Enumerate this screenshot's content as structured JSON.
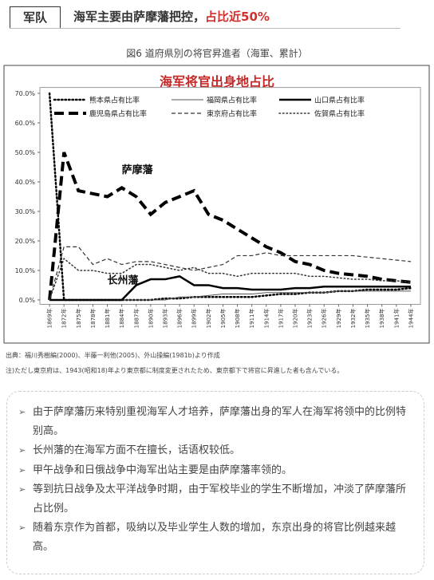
{
  "header": {
    "section": "军队",
    "title": "海军主要由萨摩藩把控，",
    "highlight": "占比近50%"
  },
  "figure_caption": "図6 道府県別の将官昇進者（海軍、累計）",
  "chart_data": {
    "type": "line",
    "title": "海军将官出身地占比",
    "x": [
      1869,
      1872,
      1875,
      1878,
      1881,
      1884,
      1887,
      1890,
      1893,
      1896,
      1899,
      1902,
      1905,
      1908,
      1911,
      1914,
      1917,
      1920,
      1923,
      1926,
      1929,
      1932,
      1935,
      1938,
      1941,
      1944
    ],
    "xlim": [
      1867,
      1946
    ],
    "xticks": [
      {
        "value": 1869,
        "label": "1869年"
      },
      {
        "value": 1872,
        "label": "1872年"
      },
      {
        "value": 1875,
        "label": "1875年"
      },
      {
        "value": 1878,
        "label": "1878年"
      },
      {
        "value": 1881,
        "label": "1881年"
      },
      {
        "value": 1884,
        "label": "1884年"
      },
      {
        "value": 1887,
        "label": "1887年"
      },
      {
        "value": 1890,
        "label": "1890年"
      },
      {
        "value": 1893,
        "label": "1893年"
      },
      {
        "value": 1896,
        "label": "1896年"
      },
      {
        "value": 1899,
        "label": "1899年"
      },
      {
        "value": 1902,
        "label": "1902年"
      },
      {
        "value": 1905,
        "label": "1905年"
      },
      {
        "value": 1908,
        "label": "1908年"
      },
      {
        "value": 1911,
        "label": "1911年"
      },
      {
        "value": 1914,
        "label": "1914年"
      },
      {
        "value": 1917,
        "label": "1917年"
      },
      {
        "value": 1920,
        "label": "1920年"
      },
      {
        "value": 1923,
        "label": "1923年"
      },
      {
        "value": 1926,
        "label": "1926年"
      },
      {
        "value": 1929,
        "label": "1929年"
      },
      {
        "value": 1932,
        "label": "1932年"
      },
      {
        "value": 1935,
        "label": "1935年"
      },
      {
        "value": 1938,
        "label": "1938年"
      },
      {
        "value": 1941,
        "label": "1941年"
      },
      {
        "value": 1944,
        "label": "1944年"
      }
    ],
    "ylim": [
      -1.5,
      72
    ],
    "yticks": [
      {
        "value": 0,
        "label": "0.0%"
      },
      {
        "value": 10,
        "label": "10.0%"
      },
      {
        "value": 20,
        "label": "20.0%"
      },
      {
        "value": 30,
        "label": "30.0%"
      },
      {
        "value": 40,
        "label": "40.0%"
      },
      {
        "value": 50,
        "label": "50.0%"
      },
      {
        "value": 60,
        "label": "60.0%"
      },
      {
        "value": 70,
        "label": "70.0%"
      }
    ],
    "series": [
      {
        "name": "熊本県占有比率",
        "color": "#000000",
        "dash": "dot",
        "width": 2.5,
        "values": [
          70,
          0,
          0,
          0,
          0,
          0,
          0,
          0,
          0.5,
          0.5,
          1,
          1,
          1,
          1,
          1,
          1.5,
          2,
          2,
          2.5,
          2.5,
          3,
          3,
          3.5,
          3.5,
          3.5,
          4
        ]
      },
      {
        "name": "福岡県占有比率",
        "color": "#555555",
        "dash": "solid",
        "width": 1,
        "values": [
          0,
          0,
          0,
          0,
          0,
          0,
          0,
          0,
          0,
          1,
          1,
          1.5,
          2,
          2,
          2,
          2.5,
          2.5,
          2.5,
          2.5,
          2.5,
          3,
          3,
          3,
          3,
          3,
          3
        ]
      },
      {
        "name": "山口県占有比率",
        "color": "#000000",
        "dash": "solid",
        "width": 2.5,
        "values": [
          0,
          0,
          0,
          0,
          0,
          0,
          5,
          7,
          7,
          8,
          5,
          5,
          4,
          4,
          3.5,
          3.5,
          3.5,
          4,
          4,
          4.5,
          4.5,
          4.5,
          4.5,
          4.5,
          4.5,
          4.5
        ]
      },
      {
        "name": "鹿児島県占有比率",
        "color": "#000000",
        "dash": "longdash",
        "width": 4,
        "values": [
          0,
          50,
          37,
          36,
          35,
          38,
          35,
          29,
          33,
          35,
          37,
          29,
          27,
          24,
          21,
          18,
          16,
          13,
          12,
          10,
          9,
          8.5,
          8,
          7,
          6.5,
          6
        ]
      },
      {
        "name": "東京府占有比率",
        "color": "#333333",
        "dash": "dash",
        "width": 1.2,
        "values": [
          0,
          18,
          18,
          12,
          14,
          12,
          13,
          13,
          12,
          11,
          10,
          11,
          12,
          15,
          15,
          16,
          15,
          15,
          15,
          15,
          15,
          15,
          14.5,
          14,
          13.5,
          13
        ]
      },
      {
        "name": "佐賀県占有比率",
        "color": "#333333",
        "dash": "dot",
        "width": 1.5,
        "values": [
          0,
          14,
          10,
          10,
          9,
          9,
          12,
          12,
          11,
          10,
          11,
          9,
          9,
          8,
          9,
          9,
          9,
          9,
          8,
          8,
          7.5,
          7,
          7,
          6.5,
          6.5,
          6
        ]
      }
    ],
    "annotations": [
      {
        "text": "萨摩藩",
        "x": 1884,
        "y": 43
      },
      {
        "text": "长州藩",
        "x": 1881,
        "y": 5.5
      }
    ]
  },
  "source": [
    "出典：福川秀樹編(2000)、半藤一利他(2005)、外山操編(1981b)より作成",
    "注)ただし東京府は、1943(昭和18)年より東京都に制度変更されたため、東京都下で将官に昇進した者も含んでいる。"
  ],
  "bullets": [
    "由于萨摩藩历来特别重视海军人才培养，萨摩藩出身的军人在海军将领中的比例特别高。",
    "长州藩的在海军方面不在擅长，话语权较低。",
    "甲午战争和日俄战争中海军出站主要是由萨摩藩率领的。",
    "等到抗日战争及太平洋战争时期，由于军校毕业的学生不断增加，冲淡了萨摩藩所占比例。",
    "随着东京作为首都，吸纳以及毕业学生人数的增加，东京出身的将官比例越来越高。"
  ]
}
